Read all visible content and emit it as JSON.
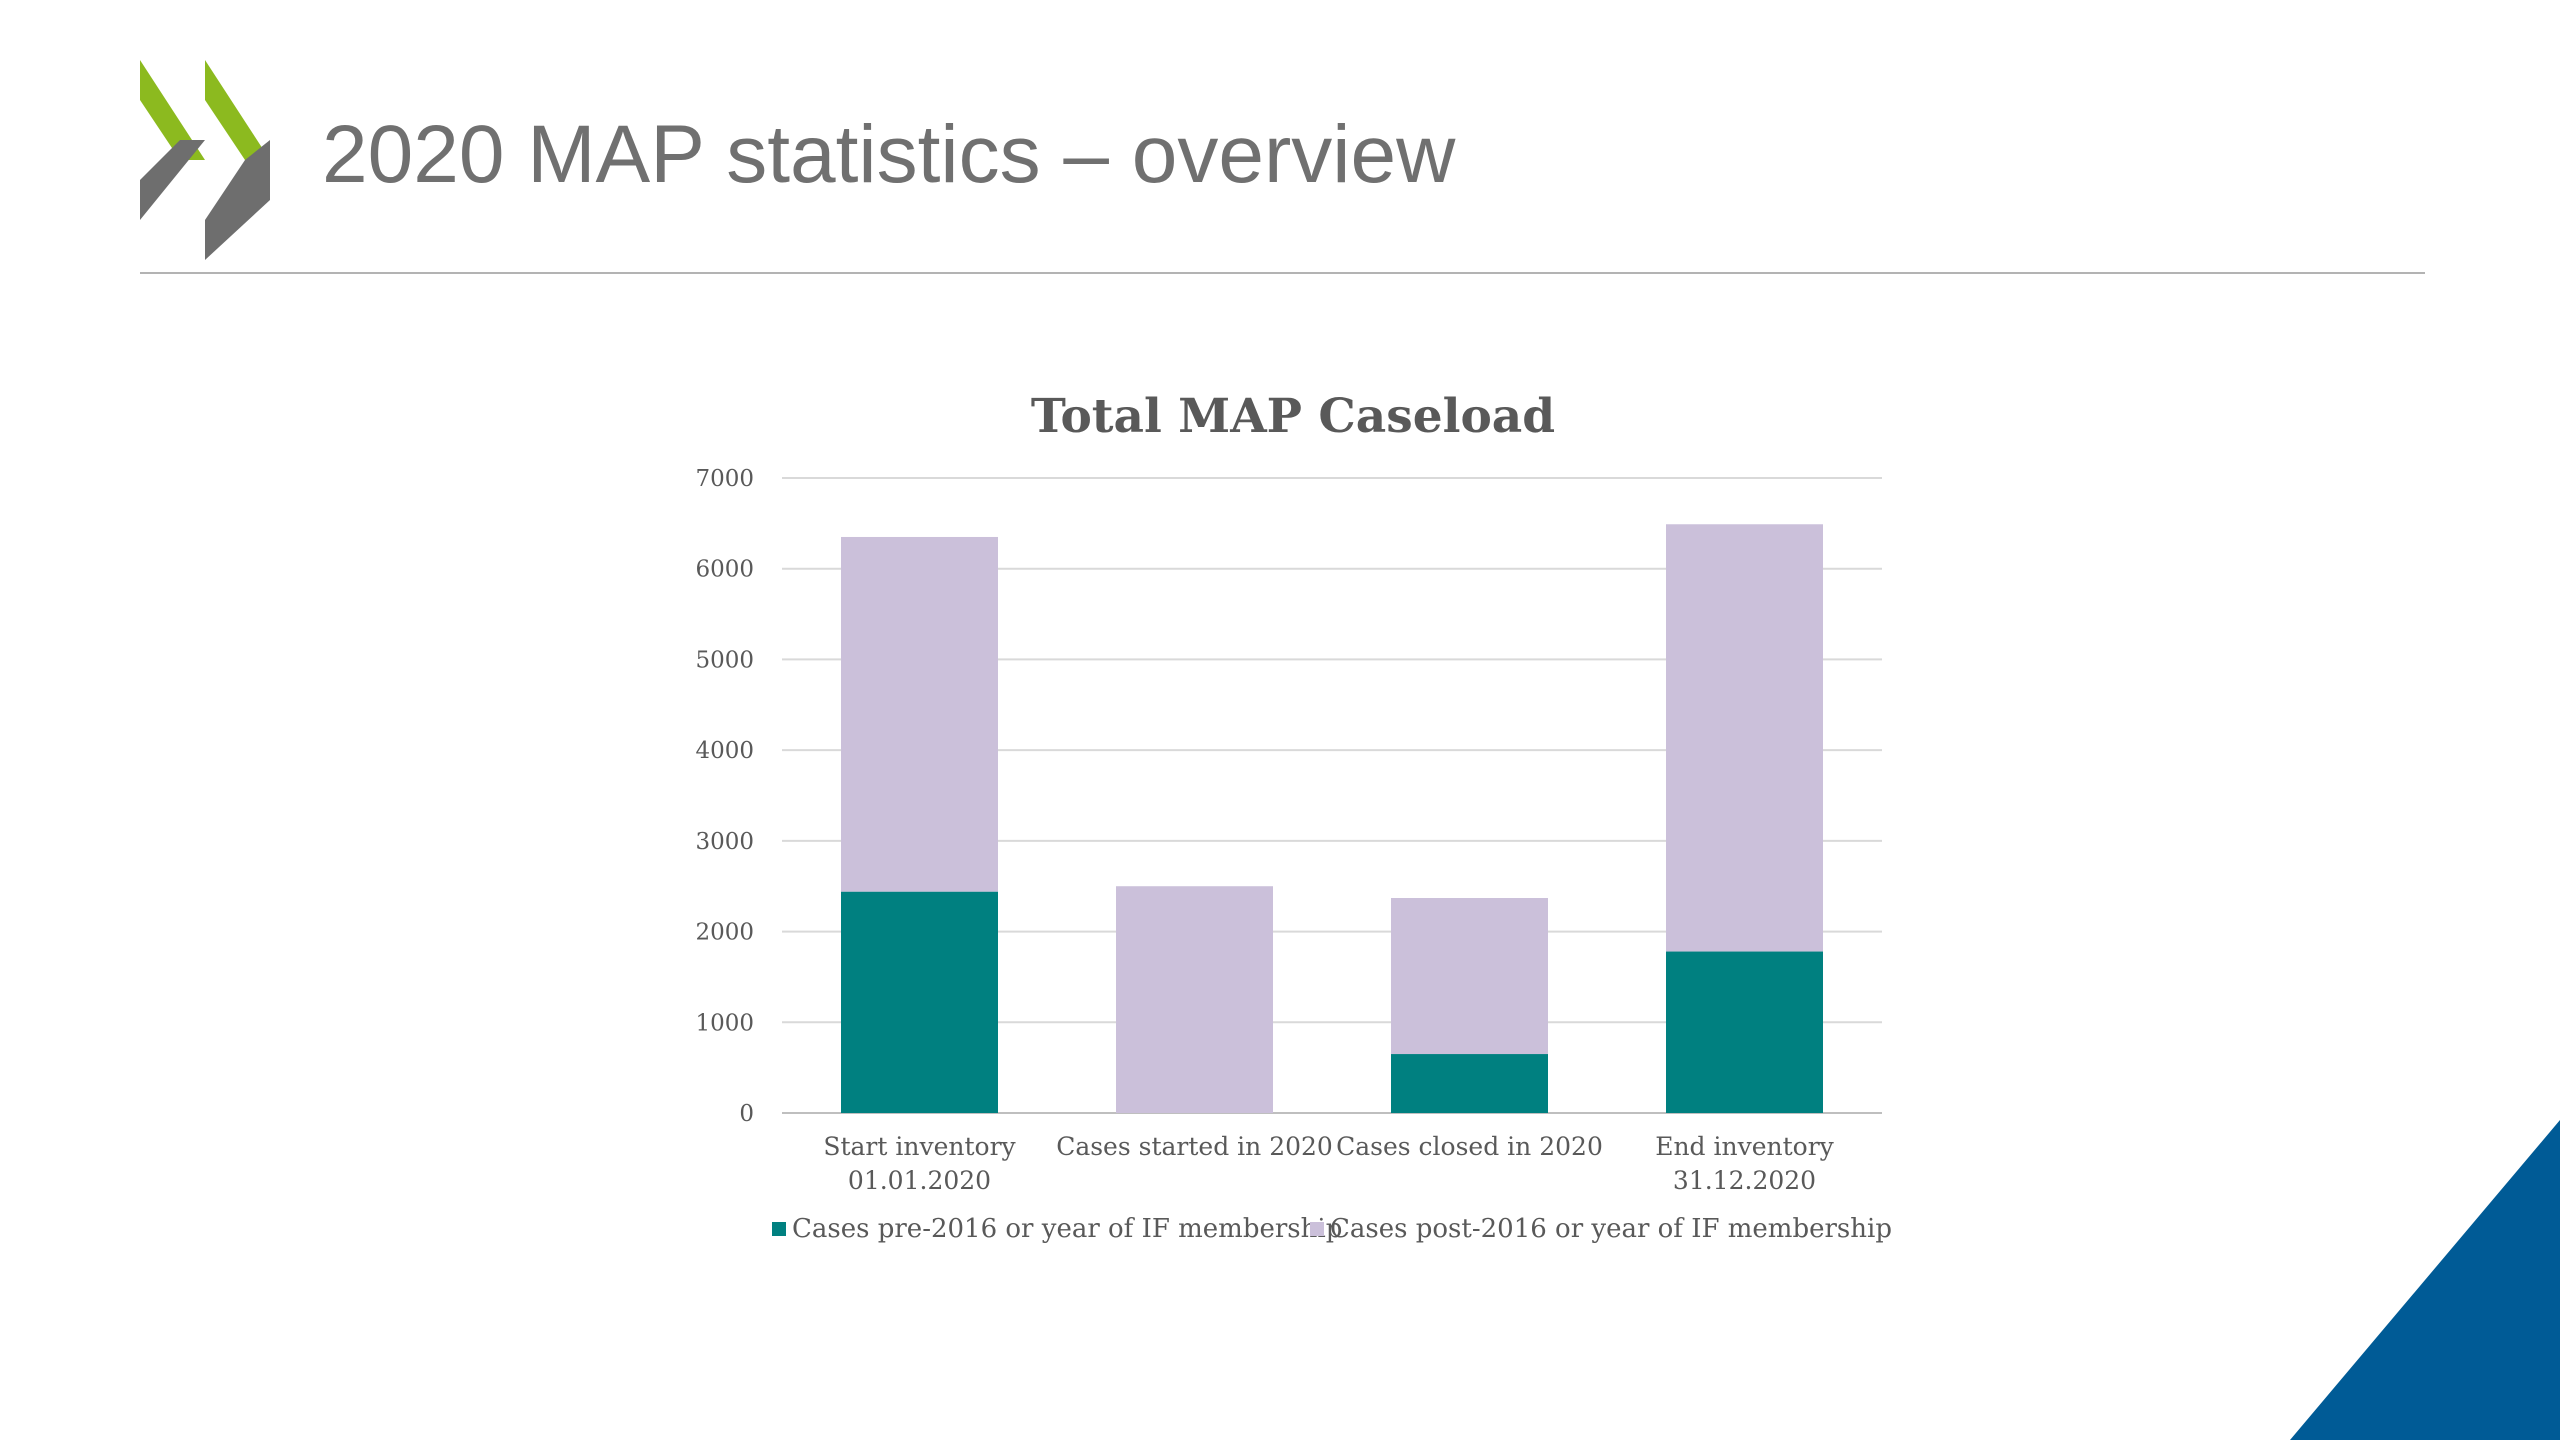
{
  "slide": {
    "title": "2020 MAP statistics – overview",
    "accent_green": "#8cba1f",
    "accent_gray": "#6e6e6e",
    "corner_blue": "#005b96"
  },
  "chart_data": {
    "type": "bar",
    "stacked": true,
    "title": "Total MAP Caseload",
    "xlabel": "",
    "ylabel": "",
    "ylim": [
      0,
      7000
    ],
    "yticks": [
      0,
      1000,
      2000,
      3000,
      4000,
      5000,
      6000,
      7000
    ],
    "grid": true,
    "legend_position": "bottom",
    "categories": [
      [
        "Start inventory",
        "01.01.2020"
      ],
      [
        "Cases started in 2020"
      ],
      [
        "Cases closed in 2020"
      ],
      [
        "End inventory",
        "31.12.2020"
      ]
    ],
    "series": [
      {
        "name": "Cases pre-2016 or year of IF membership",
        "color": "#008080",
        "values": [
          2440,
          0,
          650,
          1780
        ]
      },
      {
        "name": "Cases post-2016 or year of IF membership",
        "color": "#cbc0da",
        "values": [
          3910,
          2500,
          1720,
          4710
        ]
      }
    ]
  }
}
